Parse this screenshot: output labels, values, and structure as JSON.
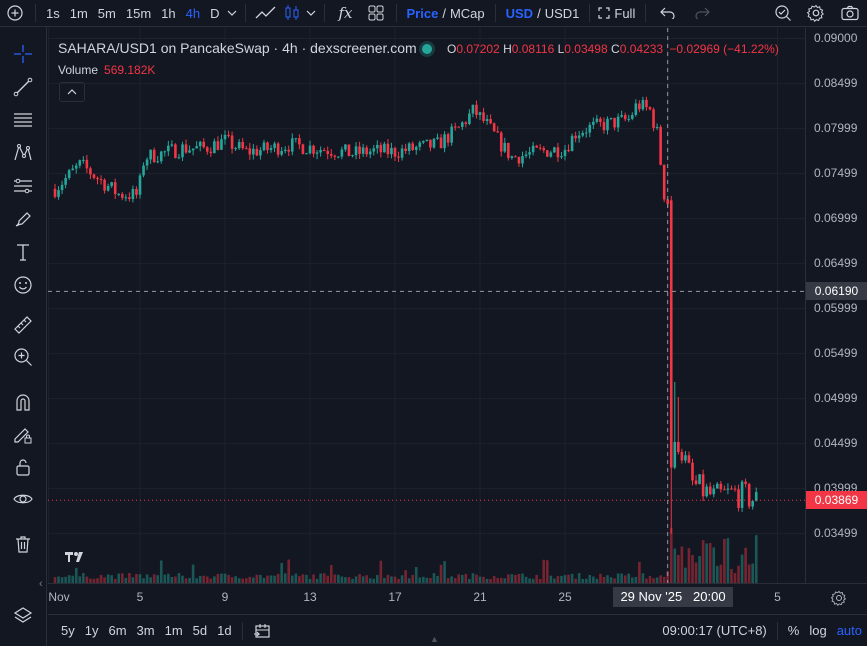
{
  "topbar": {
    "add_symbol": "+",
    "intervals": [
      "1s",
      "1m",
      "5m",
      "15m",
      "1h",
      "4h",
      "D"
    ],
    "active_interval": "4h",
    "fx_label": "fx",
    "price_label": "Price",
    "mcap_label": "MCap",
    "slash": "/",
    "usd_label": "USD",
    "usd1_label": "USD1",
    "full_label": "Full"
  },
  "legend": {
    "title": "SAHARA/USD1 on PancakeSwap · 4h · dexscreener.com",
    "o_key": "O",
    "o_val": "0.07202",
    "h_key": "H",
    "h_val": "0.08116",
    "l_key": "L",
    "l_val": "0.03498",
    "c_key": "C",
    "c_val": "0.04233",
    "change": "−0.02969 (−41.22%)",
    "volume_key": "Volume",
    "volume_val": "569.182K"
  },
  "price_axis": {
    "labels": [
      "0.09000",
      "0.08499",
      "0.07999",
      "0.07499",
      "0.06999",
      "0.06499",
      "0.05999",
      "0.05499",
      "0.04999",
      "0.04499",
      "0.03999",
      "0.03499"
    ],
    "crosshair_price": "0.06190",
    "last_price": "0.03869"
  },
  "time_axis": {
    "labels": [
      "Nov",
      "5",
      "9",
      "13",
      "17",
      "21",
      "25",
      "5"
    ],
    "crosshair_time": "29 Nov '25   20:00"
  },
  "bottombar": {
    "ranges": [
      "5y",
      "1y",
      "6m",
      "3m",
      "1m",
      "5d",
      "1d"
    ],
    "clock": "09:00:17 (UTC+8)",
    "percent": "%",
    "log": "log",
    "auto": "auto"
  },
  "colors": {
    "up": "#26a69a",
    "down": "#f23645",
    "background": "#131722",
    "accent": "#2962ff"
  },
  "chart_data": {
    "type": "candlestick",
    "symbol": "SAHARA/USD1",
    "ylim": [
      0.0325,
      0.0905
    ],
    "note_x": "x = days since Nov 1 2025 00:00 (4h candles)",
    "x_ticks": [
      {
        "x": 4,
        "label": "5"
      },
      {
        "x": 8,
        "label": "9"
      },
      {
        "x": 12,
        "label": "13"
      },
      {
        "x": 16,
        "label": "17"
      },
      {
        "x": 20,
        "label": "21"
      },
      {
        "x": 24,
        "label": "25"
      },
      {
        "x": 28.833,
        "label": "29 Nov '25 20:00"
      }
    ],
    "close_path": [
      [
        0.0,
        0.0733
      ],
      [
        1.2,
        0.076
      ],
      [
        2.0,
        0.0745
      ],
      [
        3.0,
        0.0727
      ],
      [
        3.9,
        0.0726
      ],
      [
        4.2,
        0.0768
      ],
      [
        5.0,
        0.0772
      ],
      [
        6.0,
        0.0778
      ],
      [
        7.0,
        0.0778
      ],
      [
        8.0,
        0.0786
      ],
      [
        9.0,
        0.0774
      ],
      [
        10.0,
        0.0777
      ],
      [
        11.0,
        0.0782
      ],
      [
        12.0,
        0.0779
      ],
      [
        13.0,
        0.0776
      ],
      [
        14.0,
        0.0772
      ],
      [
        15.0,
        0.0775
      ],
      [
        16.0,
        0.0774
      ],
      [
        17.0,
        0.0778
      ],
      [
        18.0,
        0.0782
      ],
      [
        19.0,
        0.08
      ],
      [
        19.7,
        0.082
      ],
      [
        20.3,
        0.0805
      ],
      [
        21.0,
        0.0782
      ],
      [
        21.5,
        0.0768
      ],
      [
        22.0,
        0.077
      ],
      [
        23.0,
        0.0775
      ],
      [
        24.0,
        0.0778
      ],
      [
        24.5,
        0.0795
      ],
      [
        25.0,
        0.08
      ],
      [
        26.0,
        0.0805
      ],
      [
        27.0,
        0.081
      ],
      [
        27.4,
        0.0827
      ],
      [
        28.0,
        0.082
      ],
      [
        28.4,
        0.079
      ],
      [
        28.6,
        0.0735
      ],
      [
        28.8,
        0.0712
      ],
      [
        28.833,
        0.0719
      ],
      [
        29.0,
        0.0423
      ],
      [
        29.3,
        0.0455
      ],
      [
        30.0,
        0.0405
      ],
      [
        31.0,
        0.039
      ],
      [
        32.0,
        0.0395
      ],
      [
        33.0,
        0.0387
      ]
    ],
    "volume_label": "Volume 569.182K"
  }
}
